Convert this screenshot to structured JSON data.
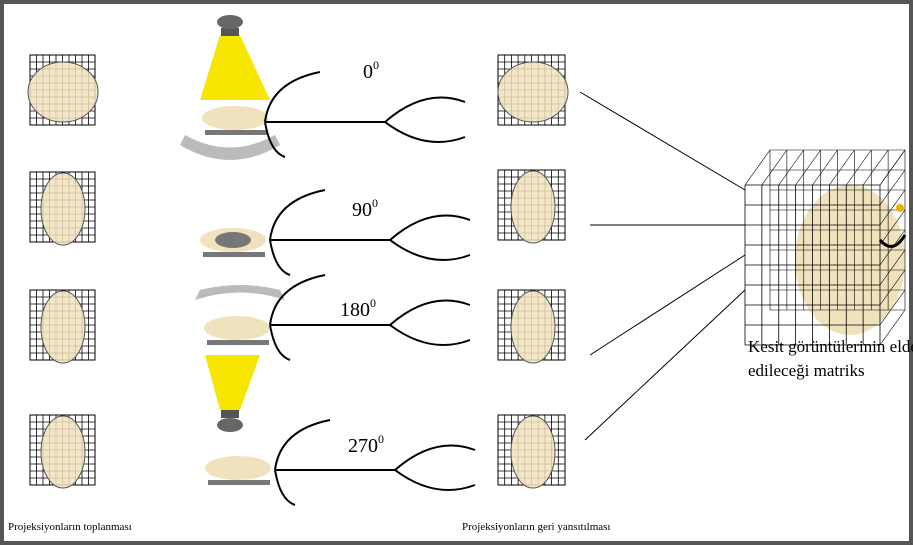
{
  "angles": [
    {
      "base": "0",
      "sup": "0"
    },
    {
      "base": "90",
      "sup": "0"
    },
    {
      "base": "180",
      "sup": "0"
    },
    {
      "base": "270",
      "sup": "0"
    }
  ],
  "captions": {
    "left": "Projeksiyonların toplanması",
    "middle": "Projeksiyonların geri yansıtılması",
    "matrix": [
      "Kesit görüntülerinin elde",
      "edileceği matriks"
    ]
  }
}
